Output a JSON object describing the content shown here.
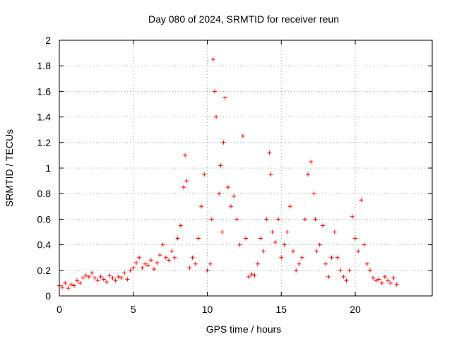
{
  "chart_data": {
    "type": "scatter",
    "title": "Day 080 of 2024, SRMTID for receiver reun",
    "xlabel": "GPS time / hours",
    "ylabel": "SRMTID / TECUs",
    "xlim": [
      0,
      25.2
    ],
    "ylim": [
      0,
      2
    ],
    "xticks": [
      "0",
      "5",
      "10",
      "15",
      "20"
    ],
    "xtick_values": [
      0,
      5,
      10,
      15,
      20
    ],
    "yticks": [
      "0",
      "0.2",
      "0.4",
      "0.6",
      "0.8",
      "1",
      "1.2",
      "1.4",
      "1.6",
      "1.8",
      "2"
    ],
    "ytick_values": [
      0,
      0.2,
      0.4,
      0.6,
      0.8,
      1.0,
      1.2,
      1.4,
      1.6,
      1.8,
      2.0
    ],
    "grid": true,
    "marker": "+",
    "color": "#ff0000",
    "series": [
      {
        "name": "SRMTID",
        "x": [
          0.0,
          0.2,
          0.4,
          0.6,
          0.8,
          1.0,
          1.2,
          1.4,
          1.6,
          1.8,
          2.0,
          2.2,
          2.4,
          2.6,
          2.8,
          3.0,
          3.2,
          3.4,
          3.6,
          3.8,
          4.0,
          4.2,
          4.4,
          4.6,
          4.8,
          5.0,
          5.2,
          5.4,
          5.6,
          5.8,
          6.0,
          6.2,
          6.4,
          6.6,
          6.8,
          7.0,
          7.2,
          7.4,
          7.6,
          7.8,
          8.0,
          8.2,
          8.4,
          8.5,
          8.6,
          8.8,
          9.0,
          9.2,
          9.4,
          9.6,
          9.8,
          10.0,
          10.2,
          10.3,
          10.4,
          10.5,
          10.6,
          10.8,
          10.9,
          11.0,
          11.1,
          11.2,
          11.4,
          11.6,
          11.8,
          12.0,
          12.2,
          12.4,
          12.6,
          12.8,
          13.0,
          13.2,
          13.4,
          13.6,
          13.8,
          14.0,
          14.2,
          14.3,
          14.4,
          14.6,
          14.8,
          15.0,
          15.2,
          15.4,
          15.6,
          15.8,
          16.0,
          16.2,
          16.4,
          16.6,
          16.8,
          17.0,
          17.2,
          17.3,
          17.4,
          17.6,
          17.8,
          18.0,
          18.2,
          18.4,
          18.6,
          18.8,
          19.0,
          19.2,
          19.4,
          19.6,
          19.8,
          20.0,
          20.2,
          20.4,
          20.6,
          20.8,
          21.0,
          21.2,
          21.4,
          21.6,
          21.8,
          22.0,
          22.2,
          22.4,
          22.6,
          22.8
        ],
        "y": [
          0.08,
          0.07,
          0.1,
          0.06,
          0.09,
          0.08,
          0.12,
          0.1,
          0.14,
          0.16,
          0.15,
          0.18,
          0.14,
          0.12,
          0.15,
          0.13,
          0.11,
          0.16,
          0.14,
          0.12,
          0.15,
          0.14,
          0.18,
          0.13,
          0.2,
          0.22,
          0.26,
          0.3,
          0.22,
          0.25,
          0.24,
          0.28,
          0.21,
          0.26,
          0.32,
          0.4,
          0.3,
          0.28,
          0.35,
          0.3,
          0.45,
          0.55,
          0.85,
          1.1,
          0.9,
          0.22,
          0.3,
          0.25,
          0.45,
          0.7,
          0.95,
          0.2,
          0.25,
          0.6,
          1.85,
          1.6,
          1.4,
          0.8,
          1.02,
          0.5,
          1.2,
          1.55,
          0.85,
          0.7,
          0.78,
          0.6,
          0.4,
          1.25,
          0.45,
          0.15,
          0.17,
          0.16,
          0.25,
          0.45,
          0.35,
          0.6,
          1.12,
          0.95,
          0.5,
          0.42,
          0.6,
          0.3,
          0.4,
          0.5,
          0.7,
          0.35,
          0.2,
          0.25,
          0.3,
          0.6,
          0.95,
          1.05,
          0.8,
          0.6,
          0.35,
          0.4,
          0.55,
          0.25,
          0.15,
          0.3,
          0.5,
          0.3,
          0.2,
          0.15,
          0.12,
          0.2,
          0.62,
          0.45,
          0.35,
          0.75,
          0.4,
          0.25,
          0.2,
          0.14,
          0.12,
          0.13,
          0.1,
          0.15,
          0.12,
          0.1,
          0.14,
          0.09
        ]
      }
    ]
  }
}
